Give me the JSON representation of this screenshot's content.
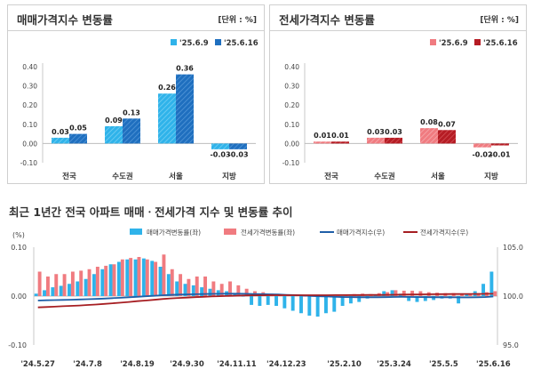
{
  "chart_data": [
    {
      "type": "bar",
      "title": "매매가격지수 변동률",
      "unit": "[단위 : %]",
      "categories": [
        "전국",
        "수도권",
        "서울",
        "지방"
      ],
      "series": [
        {
          "name": "'25.6.9",
          "values": [
            0.03,
            0.09,
            0.26,
            -0.03
          ],
          "labels": [
            "0.03",
            "0.09",
            "0.26",
            "-0.03"
          ]
        },
        {
          "name": "'25.6.16",
          "values": [
            0.05,
            0.13,
            0.36,
            -0.03
          ],
          "labels": [
            "0.05",
            "0.13",
            "0.36",
            "-0.03"
          ]
        }
      ],
      "ylim": [
        -0.1,
        0.4
      ],
      "yticks": [
        "0.40",
        "0.30",
        "0.20",
        "0.10",
        "0.00",
        "-0.10"
      ],
      "colors": [
        "#2fb3ea",
        "#1f6fbf"
      ]
    },
    {
      "type": "bar",
      "title": "전세가격지수 변동률",
      "unit": "[단위 : %]",
      "categories": [
        "전국",
        "수도권",
        "서울",
        "지방"
      ],
      "series": [
        {
          "name": "'25.6.9",
          "values": [
            0.01,
            0.03,
            0.08,
            -0.02
          ],
          "labels": [
            "0.01",
            "0.03",
            "0.08",
            "-0.02"
          ]
        },
        {
          "name": "'25.6.16",
          "values": [
            0.01,
            0.03,
            0.07,
            -0.01
          ],
          "labels": [
            "0.01",
            "0.03",
            "0.07",
            "-0.01"
          ]
        }
      ],
      "ylim": [
        -0.1,
        0.4
      ],
      "yticks": [
        "0.40",
        "0.30",
        "0.20",
        "0.10",
        "0.00",
        "-0.10"
      ],
      "colors": [
        "#f07b80",
        "#b51c24"
      ]
    },
    {
      "type": "bar+line",
      "title": "최근 1년간 전국 아파트 매매ㆍ전세가격 지수 및 변동률 추이",
      "left_unit": "(%)",
      "left_ylim": [
        -0.1,
        0.1
      ],
      "left_ticks": [
        "0.10",
        "0.00",
        "-0.10"
      ],
      "right_ylim": [
        95.0,
        105.0
      ],
      "right_ticks": [
        "105.0",
        "100.0",
        "95.0"
      ],
      "x_tick_labels": [
        "'24.5.27",
        "'24.7.8",
        "'24.8.19",
        "'24.9.30",
        "'24.11.11",
        "'24.12.23",
        "'25.2.10",
        "'25.3.24",
        "'25.5.5",
        "'25.6.16"
      ],
      "x_tick_index": [
        0,
        6,
        12,
        18,
        24,
        30,
        37,
        43,
        49,
        55
      ],
      "series": [
        {
          "name": "매매가격변동률(좌)",
          "kind": "bar",
          "color": "#2fb3ea",
          "values": [
            0.005,
            0.012,
            0.018,
            0.021,
            0.025,
            0.03,
            0.035,
            0.045,
            0.055,
            0.065,
            0.07,
            0.075,
            0.075,
            0.077,
            0.072,
            0.06,
            0.045,
            0.03,
            0.025,
            0.022,
            0.018,
            0.015,
            0.012,
            0.01,
            0.005,
            0.0,
            -0.018,
            -0.02,
            -0.018,
            -0.02,
            -0.025,
            -0.03,
            -0.035,
            -0.04,
            -0.042,
            -0.035,
            -0.032,
            -0.02,
            -0.015,
            -0.012,
            -0.005,
            0.002,
            0.01,
            0.012,
            0.005,
            -0.01,
            -0.012,
            -0.01,
            -0.008,
            -0.005,
            -0.005,
            -0.015,
            0.005,
            0.01,
            0.025,
            0.05
          ]
        },
        {
          "name": "전세가격변동률(좌)",
          "kind": "bar",
          "color": "#f07b80",
          "values": [
            0.05,
            0.04,
            0.045,
            0.045,
            0.05,
            0.052,
            0.055,
            0.06,
            0.062,
            0.065,
            0.075,
            0.078,
            0.08,
            0.075,
            0.07,
            0.085,
            0.055,
            0.045,
            0.035,
            0.04,
            0.04,
            0.03,
            0.025,
            0.03,
            0.022,
            0.015,
            0.01,
            0.008,
            0.005,
            0.003,
            0.002,
            0.001,
            0.0,
            0.0,
            0.001,
            0.0,
            0.001,
            0.003,
            0.004,
            0.005,
            0.004,
            0.006,
            0.008,
            0.012,
            0.011,
            0.011,
            0.01,
            0.008,
            0.007,
            0.006,
            0.006,
            0.005,
            0.004,
            0.006,
            0.008,
            0.01
          ]
        },
        {
          "name": "매매가격지수(우)",
          "kind": "line",
          "color": "#1f5fa8",
          "values": [
            99.55,
            99.57,
            99.59,
            99.61,
            99.63,
            99.65,
            99.68,
            99.71,
            99.75,
            99.79,
            99.83,
            99.88,
            99.93,
            99.98,
            100.03,
            100.08,
            100.12,
            100.15,
            100.17,
            100.19,
            100.21,
            100.23,
            100.24,
            100.25,
            100.25,
            100.24,
            100.22,
            100.2,
            100.18,
            100.16,
            100.13,
            100.1,
            100.06,
            100.02,
            99.98,
            99.95,
            99.92,
            99.9,
            99.89,
            99.88,
            99.88,
            99.88,
            99.89,
            99.91,
            99.92,
            99.91,
            99.9,
            99.89,
            99.88,
            99.88,
            99.87,
            99.86,
            99.86,
            99.87,
            99.9,
            99.95
          ]
        },
        {
          "name": "전세가격지수(우)",
          "kind": "line",
          "color": "#a61e22",
          "values": [
            98.85,
            98.88,
            98.92,
            98.96,
            99.0,
            99.04,
            99.09,
            99.14,
            99.2,
            99.26,
            99.33,
            99.4,
            99.48,
            99.55,
            99.62,
            99.7,
            99.76,
            99.81,
            99.85,
            99.89,
            99.93,
            99.96,
            99.99,
            100.02,
            100.04,
            100.06,
            100.07,
            100.08,
            100.09,
            100.09,
            100.09,
            100.09,
            100.09,
            100.09,
            100.09,
            100.09,
            100.1,
            100.1,
            100.11,
            100.11,
            100.12,
            100.12,
            100.13,
            100.14,
            100.15,
            100.16,
            100.17,
            100.18,
            100.19,
            100.2,
            100.21,
            100.21,
            100.22,
            100.22,
            100.23,
            100.24
          ]
        }
      ]
    }
  ]
}
